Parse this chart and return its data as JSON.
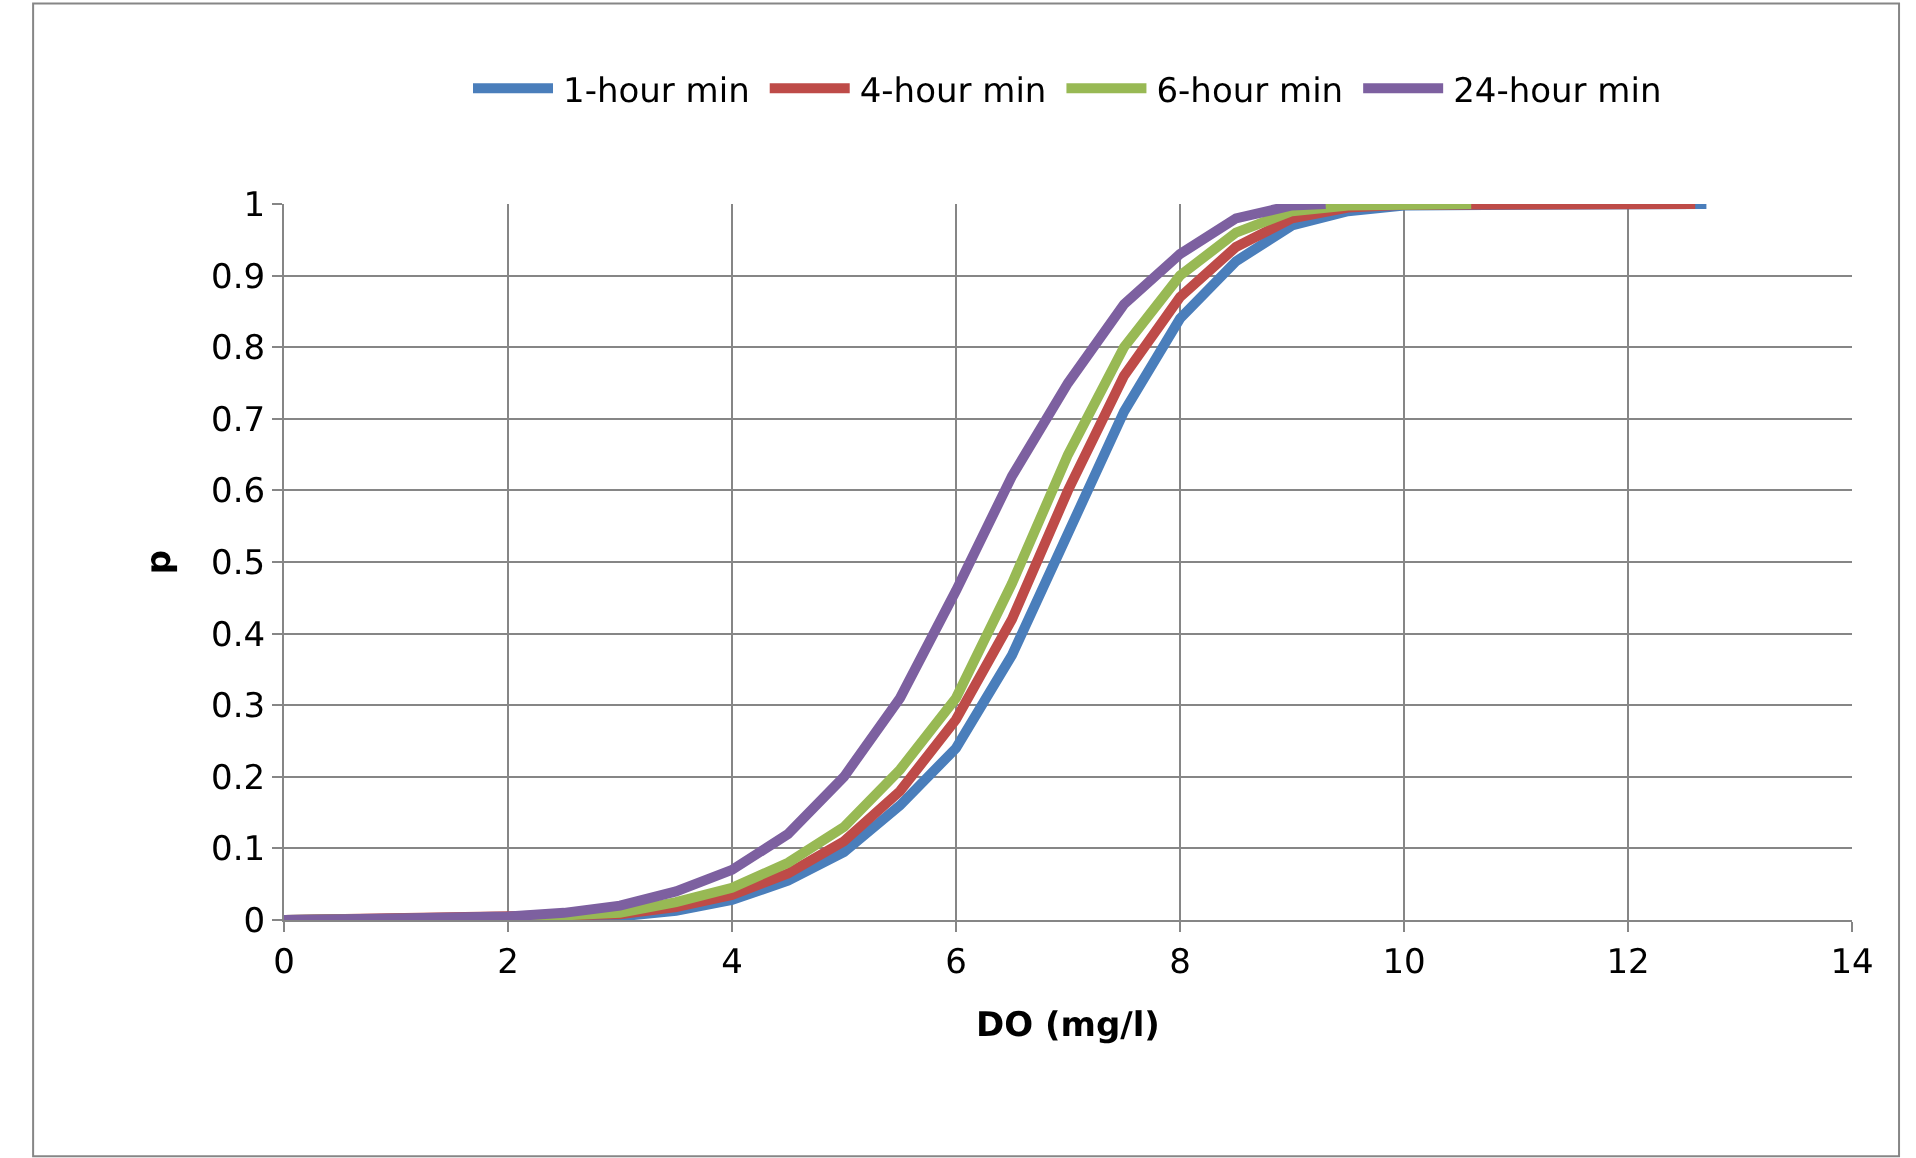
{
  "chart_data": {
    "type": "line",
    "xlabel": "DO (mg/l)",
    "ylabel": "p",
    "xlim": [
      0,
      14
    ],
    "xticks": [
      0,
      2,
      4,
      6,
      8,
      10,
      12,
      14
    ],
    "ylim": [
      0,
      1
    ],
    "yticks": [
      0,
      0.1,
      0.2,
      0.3,
      0.4,
      0.5,
      0.6,
      0.7,
      0.8,
      0.9,
      1
    ],
    "grid": true,
    "legend": "top",
    "marker": "none",
    "line_style": "solid",
    "series": [
      {
        "name": "1-hour min",
        "color": "#4a7ebb",
        "x": [
          0,
          3,
          3.5,
          4,
          4.5,
          5,
          5.5,
          6,
          6.5,
          7,
          7.5,
          8,
          8.5,
          9,
          9.5,
          10,
          12.7
        ],
        "values": [
          0,
          0.005,
          0.013,
          0.028,
          0.055,
          0.095,
          0.16,
          0.24,
          0.37,
          0.54,
          0.71,
          0.84,
          0.92,
          0.97,
          0.99,
          0.998,
          1
        ]
      },
      {
        "name": "4-hour min",
        "color": "#be4b48",
        "x": [
          0,
          3,
          3.5,
          4,
          4.5,
          5,
          5.5,
          6,
          6.5,
          7,
          7.5,
          8,
          8.5,
          9,
          9.5,
          10,
          12.6
        ],
        "values": [
          0,
          0.008,
          0.018,
          0.035,
          0.065,
          0.11,
          0.18,
          0.28,
          0.42,
          0.6,
          0.76,
          0.87,
          0.94,
          0.98,
          0.995,
          0.999,
          1
        ]
      },
      {
        "name": "6-hour min",
        "color": "#98b954",
        "x": [
          0,
          2,
          3,
          3.5,
          4,
          4.5,
          5,
          5.5,
          6,
          6.5,
          7,
          7.5,
          8,
          8.5,
          9,
          9.5,
          10.6
        ],
        "values": [
          0,
          0.003,
          0.01,
          0.025,
          0.045,
          0.08,
          0.13,
          0.21,
          0.31,
          0.47,
          0.65,
          0.8,
          0.9,
          0.96,
          0.99,
          0.998,
          1
        ]
      },
      {
        "name": "24-hour min",
        "color": "#7d60a0",
        "x": [
          0,
          1,
          2,
          2.5,
          3,
          3.5,
          4,
          4.5,
          5,
          5.5,
          6,
          6.5,
          7,
          7.5,
          8,
          8.5,
          9,
          9.3
        ],
        "values": [
          0,
          0.002,
          0.005,
          0.01,
          0.02,
          0.04,
          0.07,
          0.12,
          0.2,
          0.31,
          0.46,
          0.62,
          0.75,
          0.86,
          0.93,
          0.98,
          0.998,
          1
        ]
      }
    ]
  }
}
